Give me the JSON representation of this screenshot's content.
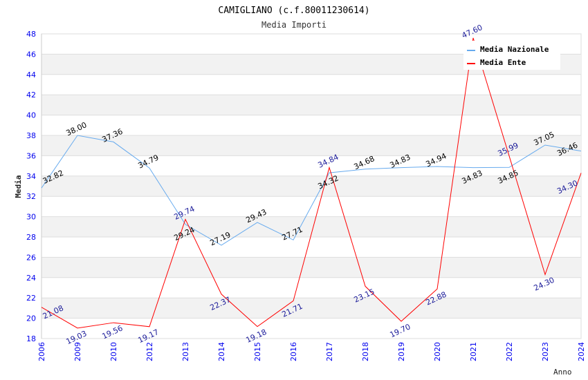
{
  "chart_data": {
    "type": "line",
    "title": "CAMIGLIANO (c.f.80011230614)",
    "subtitle": "Media Importi",
    "xlabel": "Anno",
    "ylabel": "Media",
    "ylim": [
      18,
      48
    ],
    "yticks": [
      18,
      20,
      22,
      24,
      26,
      28,
      30,
      32,
      34,
      36,
      38,
      40,
      42,
      44,
      46,
      48
    ],
    "grid": true,
    "legend_position": "top-right",
    "categories": [
      "2006",
      "2009",
      "2010",
      "2012",
      "2013",
      "2014",
      "2015",
      "2016",
      "2017",
      "2018",
      "2019",
      "2020",
      "2021",
      "2022",
      "2023",
      "2024"
    ],
    "series": [
      {
        "name": "Media Nazionale",
        "color": "#66aaee",
        "label_color": "#000000",
        "values": [
          32.82,
          38.0,
          37.36,
          34.79,
          29.24,
          27.19,
          29.43,
          27.71,
          34.32,
          34.68,
          34.83,
          34.94,
          34.83,
          34.85,
          37.05,
          36.46
        ]
      },
      {
        "name": "Media Ente",
        "color": "#ff0000",
        "label_color": "#1a1a99",
        "values": [
          21.08,
          19.03,
          19.56,
          19.17,
          29.74,
          22.37,
          19.18,
          21.71,
          34.84,
          23.15,
          19.7,
          22.88,
          47.6,
          35.99,
          24.3,
          34.3
        ]
      }
    ]
  }
}
